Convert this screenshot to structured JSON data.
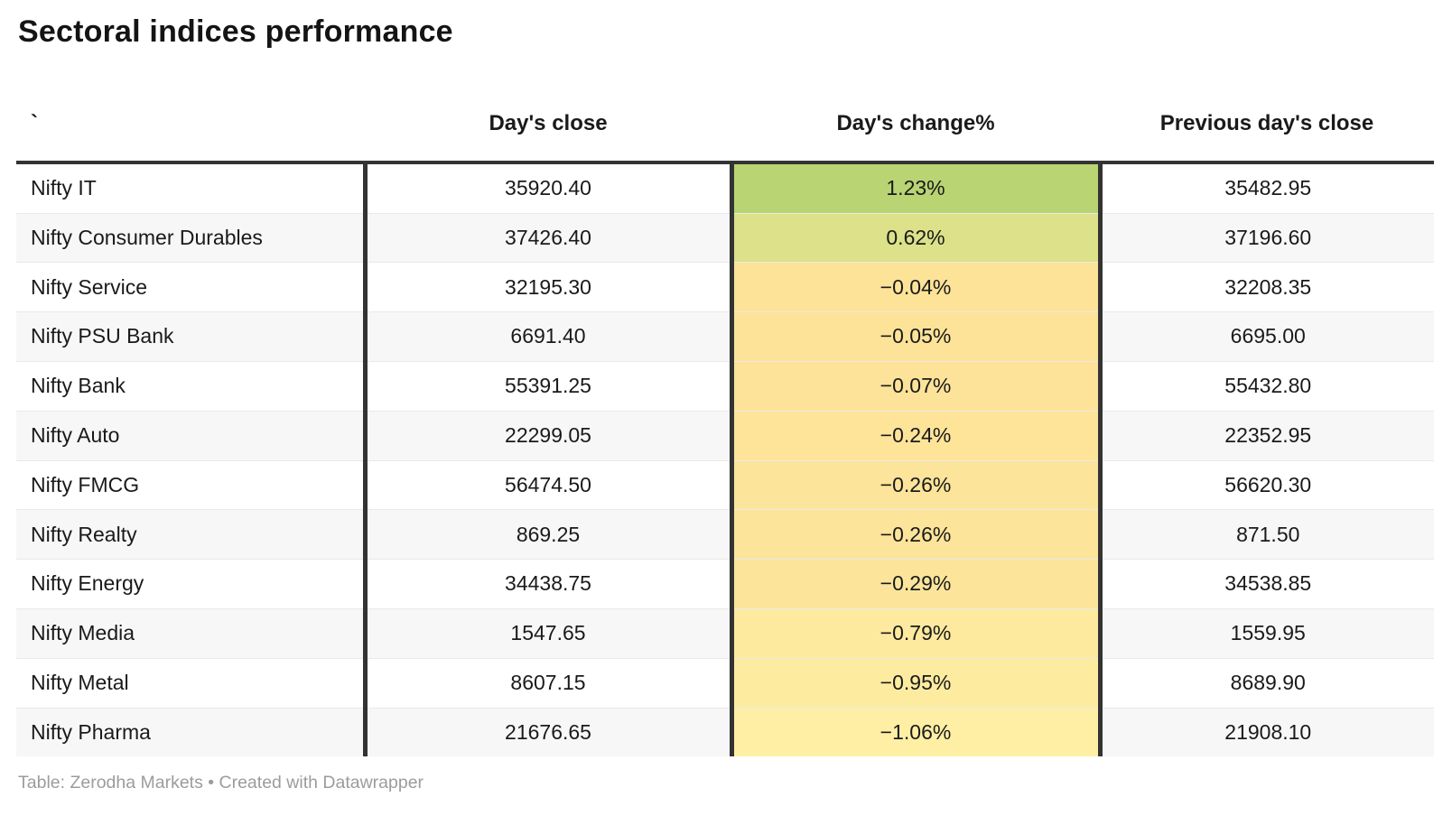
{
  "title": "Sectoral indices performance",
  "table": {
    "columns": {
      "name": "`",
      "close": "Day's close",
      "change": "Day's change%",
      "prev": "Previous day's close"
    },
    "rows": [
      {
        "name": "Nifty IT",
        "close": "35920.40",
        "change": "1.23%",
        "prev": "35482.95",
        "change_color": "#b9d473"
      },
      {
        "name": "Nifty Consumer Durables",
        "close": "37426.40",
        "change": "0.62%",
        "prev": "37196.60",
        "change_color": "#dce18a"
      },
      {
        "name": "Nifty Service",
        "close": "32195.30",
        "change": "−0.04%",
        "prev": "32208.35",
        "change_color": "#fde398"
      },
      {
        "name": "Nifty PSU Bank",
        "close": "6691.40",
        "change": "−0.05%",
        "prev": "6695.00",
        "change_color": "#fde398"
      },
      {
        "name": "Nifty Bank",
        "close": "55391.25",
        "change": "−0.07%",
        "prev": "55432.80",
        "change_color": "#fde399"
      },
      {
        "name": "Nifty Auto",
        "close": "22299.05",
        "change": "−0.24%",
        "prev": "22352.95",
        "change_color": "#fde499"
      },
      {
        "name": "Nifty FMCG",
        "close": "56474.50",
        "change": "−0.26%",
        "prev": "56620.30",
        "change_color": "#fce49a"
      },
      {
        "name": "Nifty Realty",
        "close": "869.25",
        "change": "−0.26%",
        "prev": "871.50",
        "change_color": "#fce49a"
      },
      {
        "name": "Nifty Energy",
        "close": "34438.75",
        "change": "−0.29%",
        "prev": "34538.85",
        "change_color": "#fce59b"
      },
      {
        "name": "Nifty Media",
        "close": "1547.65",
        "change": "−0.79%",
        "prev": "1559.95",
        "change_color": "#fdea9e"
      },
      {
        "name": "Nifty Metal",
        "close": "8607.15",
        "change": "−0.95%",
        "prev": "8689.90",
        "change_color": "#fdeca0"
      },
      {
        "name": "Nifty Pharma",
        "close": "21676.65",
        "change": "−1.06%",
        "prev": "21908.10",
        "change_color": "#feefa5"
      }
    ]
  },
  "footer": "Table: Zerodha Markets • Created with Datawrapper",
  "colors": {
    "border_dark": "#333333",
    "zebra_stripe": "#f7f7f7",
    "footer_text": "#9c9c9c",
    "positive_strong": "#b9d473",
    "positive_mild": "#dce18a",
    "negative_scale_start": "#fde398",
    "negative_scale_end": "#feefa5"
  },
  "chart_data": {
    "type": "table",
    "title": "Sectoral indices performance",
    "columns": [
      "`",
      "Day's close",
      "Day's change%",
      "Previous day's close"
    ],
    "rows": [
      [
        "Nifty IT",
        35920.4,
        1.23,
        35482.95
      ],
      [
        "Nifty Consumer Durables",
        37426.4,
        0.62,
        37196.6
      ],
      [
        "Nifty Service",
        32195.3,
        -0.04,
        32208.35
      ],
      [
        "Nifty PSU Bank",
        6691.4,
        -0.05,
        6695.0
      ],
      [
        "Nifty Bank",
        55391.25,
        -0.07,
        55432.8
      ],
      [
        "Nifty Auto",
        22299.05,
        -0.24,
        22352.95
      ],
      [
        "Nifty FMCG",
        56474.5,
        -0.26,
        56620.3
      ],
      [
        "Nifty Realty",
        869.25,
        -0.26,
        871.5
      ],
      [
        "Nifty Energy",
        34438.75,
        -0.29,
        34538.85
      ],
      [
        "Nifty Media",
        1547.65,
        -0.79,
        1559.95
      ],
      [
        "Nifty Metal",
        8607.15,
        -0.95,
        8689.9
      ],
      [
        "Nifty Pharma",
        21676.65,
        -1.06,
        21908.1
      ]
    ],
    "notes": "Day's change% column cells are heatmap-shaded: green for positive values fading to pale yellow for the most negative values",
    "source": "Table: Zerodha Markets • Created with Datawrapper"
  }
}
